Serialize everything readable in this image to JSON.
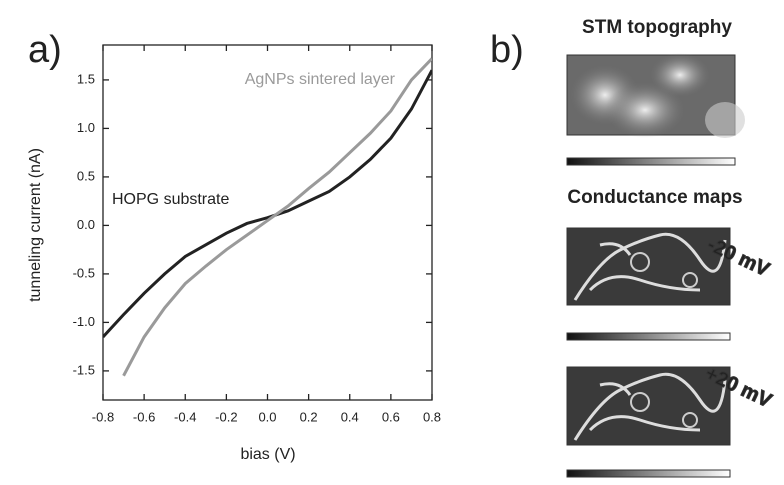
{
  "chart_data": {
    "type": "line",
    "panel_label": "a)",
    "x_label": "bias (V)",
    "y_label": "tunneling current (nA)",
    "x": [
      -0.8,
      -0.7,
      -0.6,
      -0.5,
      -0.4,
      -0.3,
      -0.2,
      -0.1,
      0,
      0.1,
      0.2,
      0.3,
      0.4,
      0.5,
      0.6,
      0.7,
      0.8
    ],
    "series": [
      {
        "name": "HOPG substrate",
        "color": "#222222",
        "values": [
          -1.15,
          -0.92,
          -0.7,
          -0.5,
          -0.32,
          -0.2,
          -0.08,
          0.02,
          0.08,
          0.15,
          0.25,
          0.35,
          0.5,
          0.68,
          0.9,
          1.2,
          1.6
        ]
      },
      {
        "name": "AgNPs sintered layer",
        "color": "#9a9a9a",
        "values": [
          null,
          -1.55,
          -1.15,
          -0.85,
          -0.6,
          -0.42,
          -0.25,
          -0.1,
          0.05,
          0.2,
          0.38,
          0.55,
          0.75,
          0.95,
          1.18,
          1.5,
          1.72
        ]
      }
    ],
    "xlim": [
      -0.8,
      0.8
    ],
    "xticks": [
      -0.8,
      -0.6,
      -0.4,
      -0.2,
      {
        "value": 0,
        "label": "0.0"
      },
      0.2,
      0.4,
      0.6,
      0.8
    ],
    "ylim": [
      -1.8,
      1.86
    ],
    "yticks": [
      -1.5,
      {
        "value": -1,
        "label": "-1.0"
      },
      -0.5,
      {
        "value": 0,
        "label": "0.0"
      },
      0.5,
      {
        "value": 1,
        "label": "1.0"
      },
      1.5
    ],
    "grid": false
  },
  "panel_b": {
    "label": "b)",
    "topography_title": "STM topography",
    "conductance_title": "Conductance maps",
    "map_labels": [
      "-20 mV",
      "+20 mV"
    ]
  }
}
